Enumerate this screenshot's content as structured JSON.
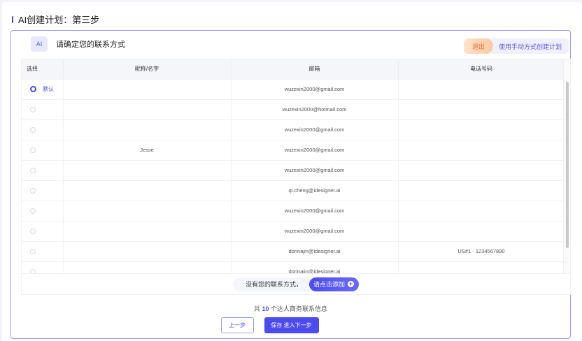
{
  "page": {
    "title": "AI创建计划：第三步"
  },
  "panel": {
    "ai_badge": "AI",
    "heading": "请确定您的联系方式",
    "exit_label": "退出",
    "manual_label": "使用手动方式创建计划"
  },
  "table": {
    "columns": [
      "选择",
      "昵称/名字",
      "邮箱",
      "电话号码"
    ],
    "default_label": "默认",
    "rows": [
      {
        "selected": true,
        "name": "",
        "email": "wuzexin2000@gmail.com",
        "phone": ""
      },
      {
        "selected": false,
        "name": "",
        "email": "wuzexin2000@hotmail.com",
        "phone": ""
      },
      {
        "selected": false,
        "name": "",
        "email": "wuzexin2000@gmail.com",
        "phone": ""
      },
      {
        "selected": false,
        "name": "Jesse",
        "email": "wuzexin2000@gmail.com",
        "phone": ""
      },
      {
        "selected": false,
        "name": "",
        "email": "wuzexin2000@gmail.com",
        "phone": ""
      },
      {
        "selected": false,
        "name": "",
        "email": "qi.cheng@idesigner.ai",
        "phone": ""
      },
      {
        "selected": false,
        "name": "",
        "email": "wuzexin2000@gmail.com",
        "phone": ""
      },
      {
        "selected": false,
        "name": "",
        "email": "wuzexin2000@gmail.com",
        "phone": ""
      },
      {
        "selected": false,
        "name": "",
        "email": "dorinajin@idesigner.ai",
        "phone": "US#1 - 1234567890"
      },
      {
        "selected": false,
        "name": "",
        "email": "dorinajin@idesigner.ai",
        "phone": ""
      }
    ]
  },
  "add": {
    "prompt": "没有您的联系方式，",
    "button": "请点击添加"
  },
  "footer": {
    "total_prefix": "共",
    "total_count": "10",
    "total_suffix": "个达人商务联系信息",
    "prev_label": "上一步",
    "next_label": "保存 进入下一步"
  },
  "colors": {
    "accent": "#4b4bf0",
    "exit": "#f06a2c"
  }
}
